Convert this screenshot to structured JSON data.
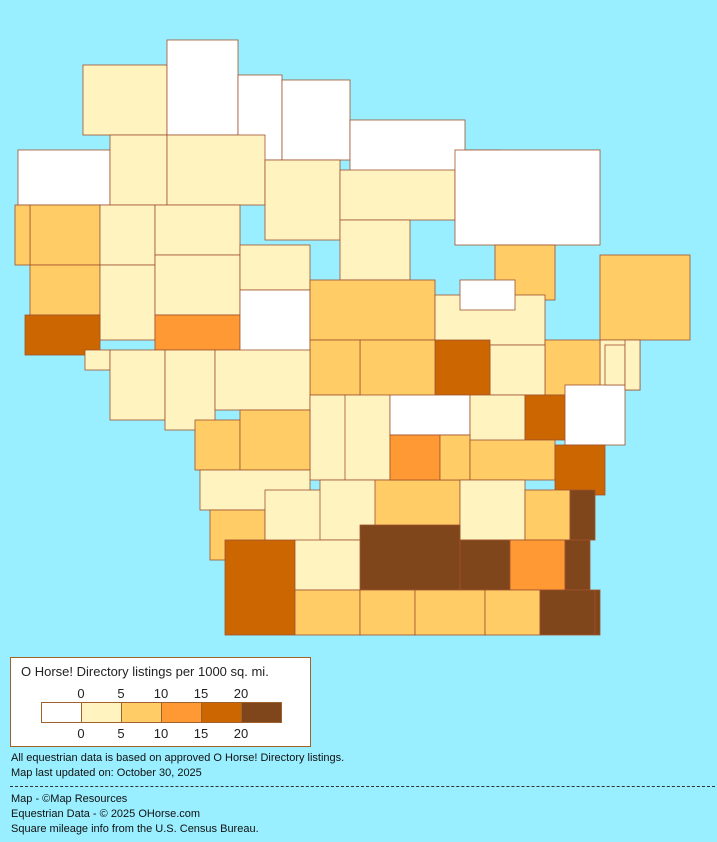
{
  "legend": {
    "title": "O Horse! Directory listings per 1000 sq. mi.",
    "ticks": [
      "0",
      "5",
      "10",
      "15",
      "20"
    ],
    "colors": [
      "#ffffff",
      "#fff3c0",
      "#ffcc66",
      "#ff9933",
      "#cc6600",
      "#7f461b"
    ]
  },
  "notes": {
    "line1": "All equestrian data is based on approved O Horse! Directory listings.",
    "line2": "Map last updated on: October 30, 2025"
  },
  "credits": {
    "map": "Map - ©Map Resources",
    "data": "Equestrian Data - © 2025 OHorse.com",
    "census": "Square mileage info from the U.S. Census Bureau."
  },
  "county_categories": [
    0,
    1,
    0,
    0,
    0,
    1,
    0,
    0,
    2,
    1,
    1,
    1,
    1,
    1,
    2,
    2,
    1,
    1,
    0,
    1,
    1,
    2,
    4,
    3,
    0,
    2,
    1,
    0,
    2,
    1,
    2,
    1,
    4,
    2,
    2,
    1,
    1,
    1,
    1,
    1,
    1,
    0,
    1,
    4,
    0,
    2,
    2,
    1,
    2,
    1,
    1,
    2,
    3,
    2,
    2,
    4,
    1,
    2,
    5,
    5,
    5,
    3,
    5,
    4,
    1,
    2,
    2,
    2,
    2,
    5,
    5,
    1,
    1
  ]
}
